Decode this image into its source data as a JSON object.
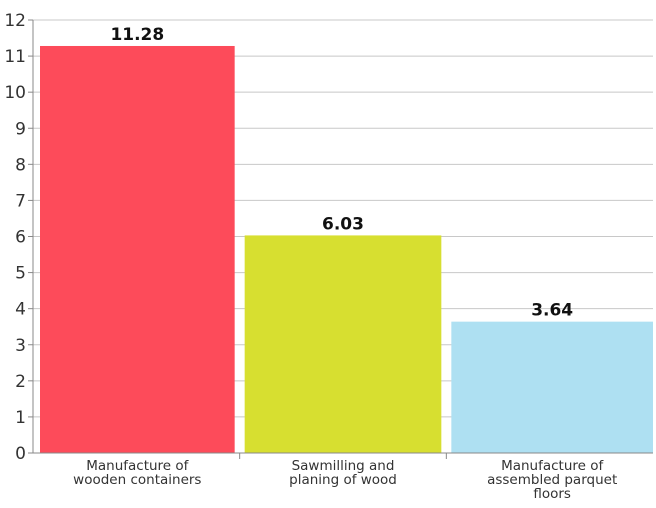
{
  "chart_data": {
    "type": "bar",
    "categories": [
      [
        "Manufacture of",
        "wooden containers"
      ],
      [
        "Sawmilling and",
        "planing of wood"
      ],
      [
        "Manufacture of",
        "assembled parquet",
        "floors"
      ]
    ],
    "values": [
      11.28,
      6.03,
      3.64
    ],
    "value_labels": [
      "11.28",
      "6.03",
      "3.64"
    ],
    "colors": [
      "#fd4b5a",
      "#d7df30",
      "#aee0f2"
    ],
    "ylim": [
      0,
      12
    ],
    "yticks": [
      0,
      1,
      2,
      3,
      4,
      5,
      6,
      7,
      8,
      9,
      10,
      11,
      12
    ],
    "grid": true,
    "title": "",
    "xlabel": "",
    "ylabel": ""
  }
}
